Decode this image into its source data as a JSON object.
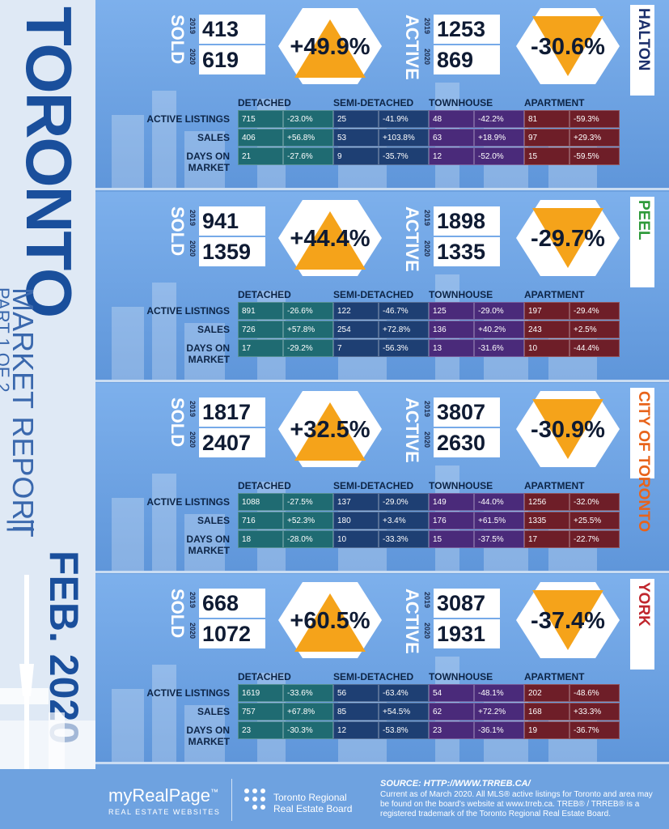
{
  "sidebar": {
    "title": "TORONTO",
    "subtitle": "MARKET REPORT",
    "part": "PART 1 OF 2",
    "separator": "||",
    "date": "FEB. 2020"
  },
  "labels": {
    "sold": "SOLD",
    "active": "ACTIVE",
    "year1": "2019",
    "year2": "2020",
    "row_active": "ACTIVE LISTINGS",
    "row_sales": "SALES",
    "row_dom": "DAYS ON MARKET",
    "cat_detached": "DETACHED",
    "cat_semi": "SEMI-DETACHED",
    "cat_town": "TOWNHOUSE",
    "cat_apt": "APARTMENT"
  },
  "regions": [
    {
      "name": "HALTON",
      "color": "#1b2f6b",
      "sold_2019": "413",
      "sold_2020": "619",
      "sold_change": "+49.9%",
      "sold_dir": "up",
      "active_2019": "1253",
      "active_2020": "869",
      "active_change": "-30.6%",
      "active_dir": "down",
      "rows": [
        [
          "715",
          "-23.0%",
          "25",
          "-41.9%",
          "48",
          "-42.2%",
          "81",
          "-59.3%"
        ],
        [
          "406",
          "+56.8%",
          "53",
          "+103.8%",
          "63",
          "+18.9%",
          "97",
          "+29.3%"
        ],
        [
          "21",
          "-27.6%",
          "9",
          "-35.7%",
          "12",
          "-52.0%",
          "15",
          "-59.5%"
        ]
      ]
    },
    {
      "name": "PEEL",
      "color": "#2e9a3a",
      "sold_2019": "941",
      "sold_2020": "1359",
      "sold_change": "+44.4%",
      "sold_dir": "up",
      "active_2019": "1898",
      "active_2020": "1335",
      "active_change": "-29.7%",
      "active_dir": "down",
      "rows": [
        [
          "891",
          "-26.6%",
          "122",
          "-46.7%",
          "125",
          "-29.0%",
          "197",
          "-29.4%"
        ],
        [
          "726",
          "+57.8%",
          "254",
          "+72.8%",
          "136",
          "+40.2%",
          "243",
          "+2.5%"
        ],
        [
          "17",
          "-29.2%",
          "7",
          "-56.3%",
          "13",
          "-31.6%",
          "10",
          "-44.4%"
        ]
      ]
    },
    {
      "name": "CITY OF TORONTO",
      "color": "#e8631a",
      "sold_2019": "1817",
      "sold_2020": "2407",
      "sold_change": "+32.5%",
      "sold_dir": "up",
      "active_2019": "3807",
      "active_2020": "2630",
      "active_change": "-30.9%",
      "active_dir": "down",
      "rows": [
        [
          "1088",
          "-27.5%",
          "137",
          "-29.0%",
          "149",
          "-44.0%",
          "1256",
          "-32.0%"
        ],
        [
          "716",
          "+52.3%",
          "180",
          "+3.4%",
          "176",
          "+61.5%",
          "1335",
          "+25.5%"
        ],
        [
          "18",
          "-28.0%",
          "10",
          "-33.3%",
          "15",
          "-37.5%",
          "17",
          "-22.7%"
        ]
      ]
    },
    {
      "name": "YORK",
      "color": "#c0262d",
      "sold_2019": "668",
      "sold_2020": "1072",
      "sold_change": "+60.5%",
      "sold_dir": "up",
      "active_2019": "3087",
      "active_2020": "1931",
      "active_change": "-37.4%",
      "active_dir": "down",
      "rows": [
        [
          "1619",
          "-33.6%",
          "56",
          "-63.4%",
          "54",
          "-48.1%",
          "202",
          "-48.6%"
        ],
        [
          "757",
          "+67.8%",
          "85",
          "+54.5%",
          "62",
          "+72.2%",
          "168",
          "+33.3%"
        ],
        [
          "23",
          "-30.3%",
          "12",
          "-53.8%",
          "23",
          "-36.1%",
          "19",
          "-36.7%"
        ]
      ]
    }
  ],
  "colors": {
    "detached": "#1f6b72",
    "semi": "#1e3f73",
    "town": "#4a2a7a",
    "apt": "#6e1e28",
    "arrow": "#f5a31a"
  },
  "footer": {
    "logo1": "myRealPage",
    "logo1_tm": "™",
    "logo1_sub": "REAL ESTATE WEBSITES",
    "logo2_line1": "Toronto Regional",
    "logo2_line2": "Real Estate Board",
    "source": "SOURCE: HTTP://WWW.TRREB.CA/",
    "note": "Current as of March 2020. All MLS® active listings for Toronto and area may be found on the board's website at www.trreb.ca. TREB® / TRREB® is a registered trademark of the Toronto Regional Real Estate Board."
  }
}
